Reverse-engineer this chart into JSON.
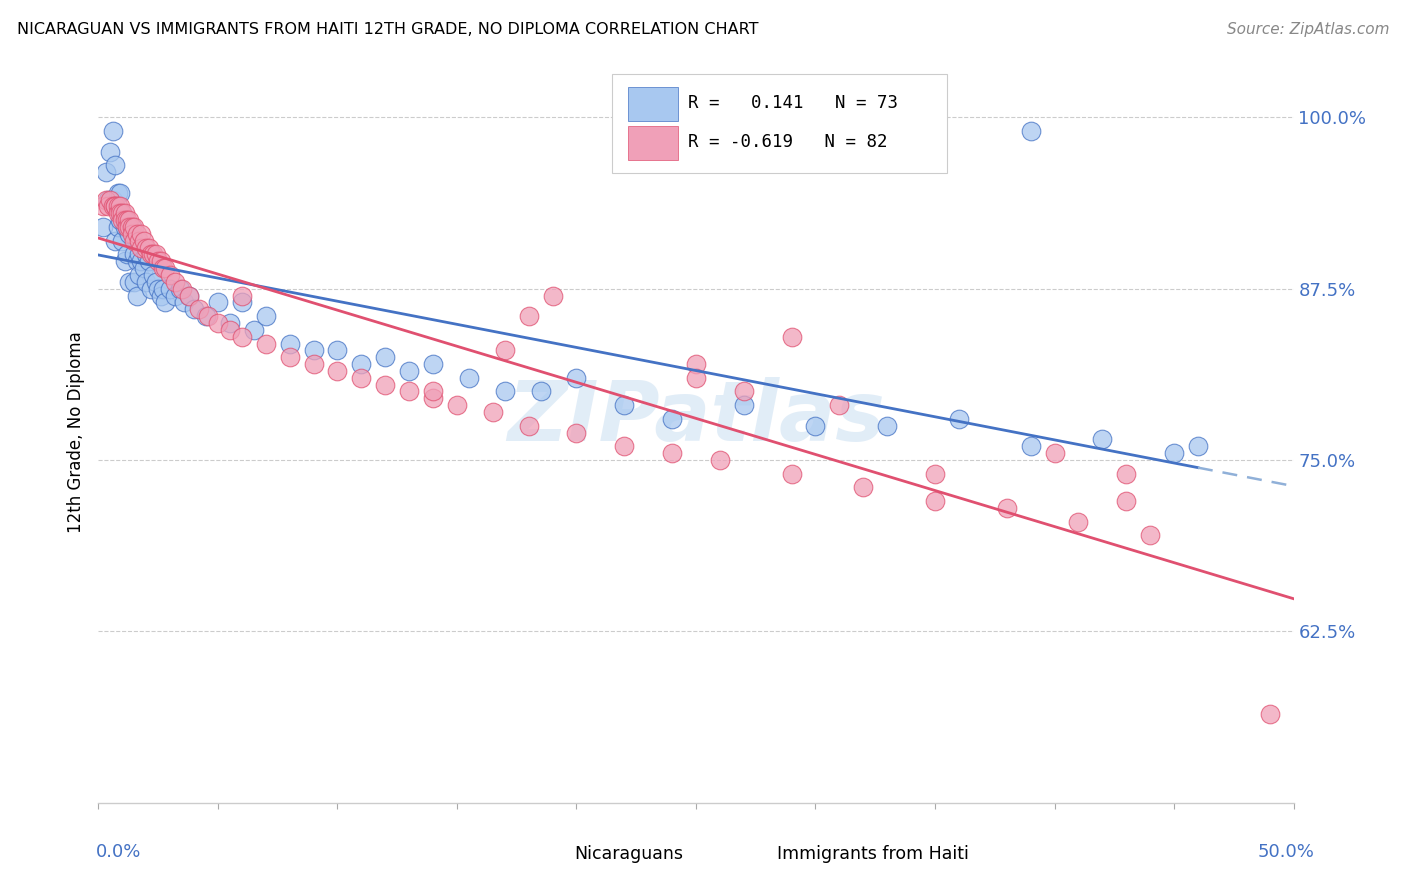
{
  "title": "NICARAGUAN VS IMMIGRANTS FROM HAITI 12TH GRADE, NO DIPLOMA CORRELATION CHART",
  "source": "Source: ZipAtlas.com",
  "ylabel": "12th Grade, No Diploma",
  "ytick_values": [
    1.0,
    0.875,
    0.75,
    0.625
  ],
  "xlim": [
    0.0,
    0.5
  ],
  "ylim": [
    0.5,
    1.04
  ],
  "blue_color": "#A8C8F0",
  "pink_color": "#F0A0B8",
  "blue_line_color": "#4472C4",
  "pink_line_color": "#E05070",
  "dashed_line_color": "#90B0D8",
  "blue_x": [
    0.002,
    0.003,
    0.004,
    0.005,
    0.006,
    0.006,
    0.007,
    0.007,
    0.008,
    0.008,
    0.009,
    0.009,
    0.01,
    0.01,
    0.011,
    0.011,
    0.012,
    0.012,
    0.013,
    0.013,
    0.014,
    0.015,
    0.015,
    0.016,
    0.016,
    0.017,
    0.017,
    0.018,
    0.019,
    0.02,
    0.02,
    0.021,
    0.022,
    0.023,
    0.024,
    0.025,
    0.026,
    0.027,
    0.028,
    0.03,
    0.032,
    0.034,
    0.036,
    0.038,
    0.04,
    0.045,
    0.05,
    0.055,
    0.06,
    0.065,
    0.07,
    0.08,
    0.09,
    0.1,
    0.11,
    0.12,
    0.13,
    0.14,
    0.155,
    0.17,
    0.185,
    0.2,
    0.22,
    0.24,
    0.27,
    0.3,
    0.33,
    0.36,
    0.39,
    0.42,
    0.45,
    0.46,
    0.39
  ],
  "blue_y": [
    0.92,
    0.96,
    0.94,
    0.975,
    0.99,
    0.94,
    0.965,
    0.91,
    0.945,
    0.92,
    0.945,
    0.925,
    0.93,
    0.91,
    0.92,
    0.895,
    0.92,
    0.9,
    0.915,
    0.88,
    0.92,
    0.9,
    0.88,
    0.895,
    0.87,
    0.9,
    0.885,
    0.895,
    0.89,
    0.9,
    0.88,
    0.895,
    0.875,
    0.885,
    0.88,
    0.875,
    0.87,
    0.875,
    0.865,
    0.875,
    0.87,
    0.875,
    0.865,
    0.87,
    0.86,
    0.855,
    0.865,
    0.85,
    0.865,
    0.845,
    0.855,
    0.835,
    0.83,
    0.83,
    0.82,
    0.825,
    0.815,
    0.82,
    0.81,
    0.8,
    0.8,
    0.81,
    0.79,
    0.78,
    0.79,
    0.775,
    0.775,
    0.78,
    0.76,
    0.765,
    0.755,
    0.76,
    0.99
  ],
  "pink_x": [
    0.002,
    0.003,
    0.004,
    0.005,
    0.006,
    0.007,
    0.007,
    0.008,
    0.008,
    0.009,
    0.009,
    0.01,
    0.01,
    0.011,
    0.011,
    0.012,
    0.012,
    0.013,
    0.013,
    0.014,
    0.014,
    0.015,
    0.015,
    0.016,
    0.017,
    0.018,
    0.018,
    0.019,
    0.02,
    0.021,
    0.022,
    0.023,
    0.024,
    0.025,
    0.026,
    0.027,
    0.028,
    0.03,
    0.032,
    0.035,
    0.038,
    0.042,
    0.046,
    0.05,
    0.055,
    0.06,
    0.07,
    0.08,
    0.09,
    0.1,
    0.11,
    0.12,
    0.13,
    0.14,
    0.15,
    0.165,
    0.18,
    0.2,
    0.22,
    0.24,
    0.26,
    0.29,
    0.32,
    0.35,
    0.38,
    0.41,
    0.44,
    0.35,
    0.29,
    0.19,
    0.25,
    0.27,
    0.31,
    0.14,
    0.17,
    0.06,
    0.25,
    0.18,
    0.43,
    0.4,
    0.43,
    0.49
  ],
  "pink_y": [
    0.935,
    0.94,
    0.935,
    0.94,
    0.935,
    0.935,
    0.935,
    0.935,
    0.93,
    0.935,
    0.93,
    0.93,
    0.925,
    0.93,
    0.925,
    0.925,
    0.92,
    0.925,
    0.92,
    0.92,
    0.915,
    0.92,
    0.91,
    0.915,
    0.91,
    0.915,
    0.905,
    0.91,
    0.905,
    0.905,
    0.9,
    0.9,
    0.9,
    0.895,
    0.895,
    0.89,
    0.89,
    0.885,
    0.88,
    0.875,
    0.87,
    0.86,
    0.855,
    0.85,
    0.845,
    0.84,
    0.835,
    0.825,
    0.82,
    0.815,
    0.81,
    0.805,
    0.8,
    0.795,
    0.79,
    0.785,
    0.775,
    0.77,
    0.76,
    0.755,
    0.75,
    0.74,
    0.73,
    0.72,
    0.715,
    0.705,
    0.695,
    0.74,
    0.84,
    0.87,
    0.82,
    0.8,
    0.79,
    0.8,
    0.83,
    0.87,
    0.81,
    0.855,
    0.74,
    0.755,
    0.72,
    0.565
  ]
}
